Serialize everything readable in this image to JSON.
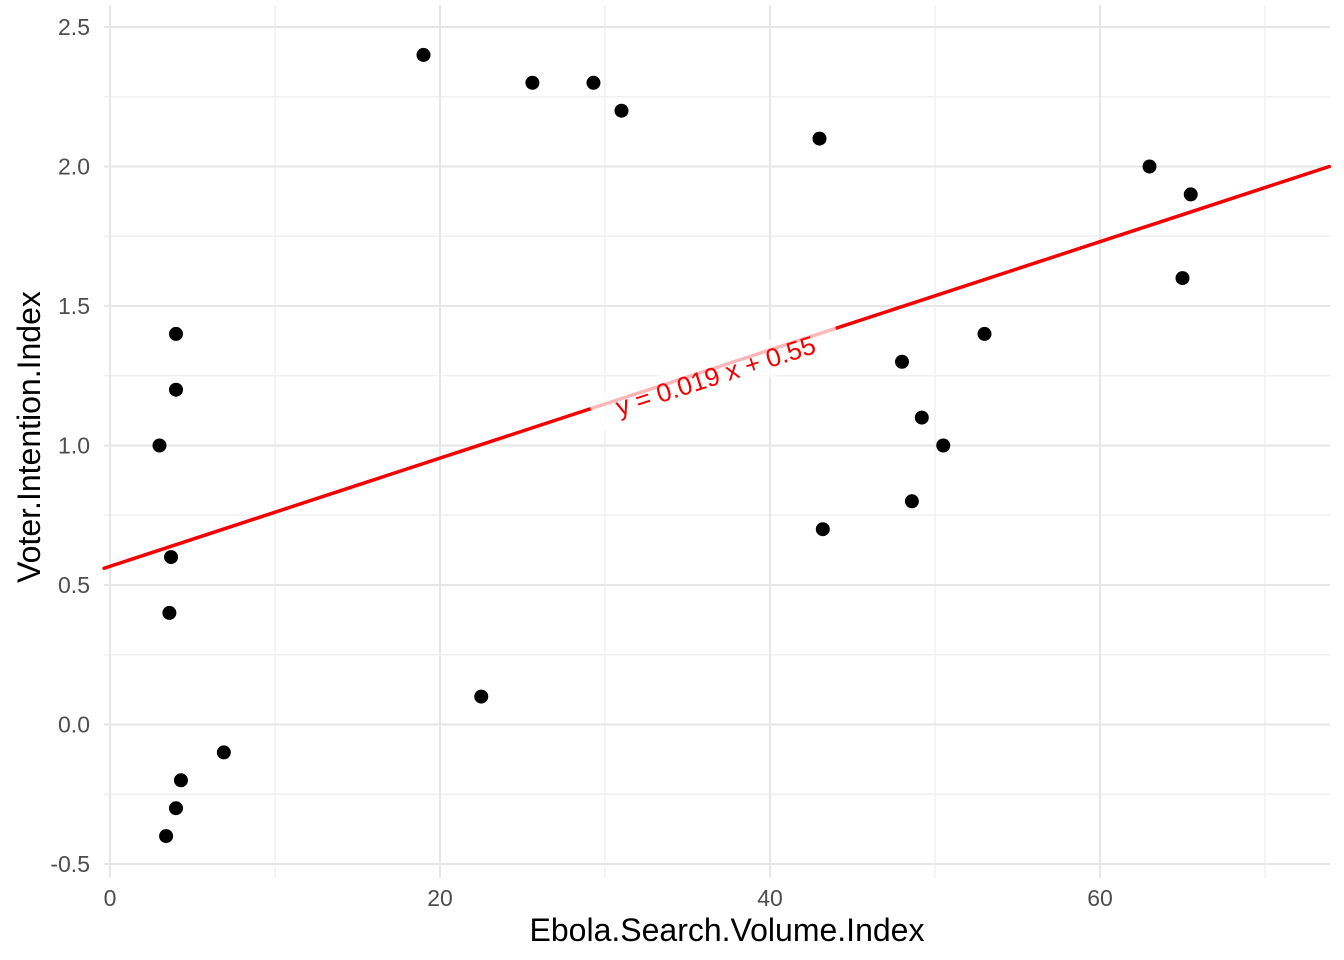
{
  "chart_data": {
    "type": "scatter",
    "title": "",
    "xlabel": "Ebola.Search.Volume.Index",
    "ylabel": "Voter.Intention.Index",
    "grid": true,
    "legend": false,
    "xlim": [
      -0.4,
      74.5
    ],
    "ylim": [
      -0.55,
      2.58
    ],
    "x_ticks": [
      {
        "value": 0,
        "label": "0"
      },
      {
        "value": 20,
        "label": "20"
      },
      {
        "value": 40,
        "label": "40"
      },
      {
        "value": 60,
        "label": "60"
      }
    ],
    "x_minor_ticks": [
      10,
      30,
      50,
      70
    ],
    "y_ticks": [
      {
        "value": 2.5,
        "label": "2.5"
      },
      {
        "value": 2.0,
        "label": "2.0"
      },
      {
        "value": 1.5,
        "label": "1.5"
      },
      {
        "value": 1.0,
        "label": "1.0"
      },
      {
        "value": 0.5,
        "label": "0.5"
      },
      {
        "value": 0.0,
        "label": "0.0"
      },
      {
        "value": -0.5,
        "label": "-0.5"
      }
    ],
    "y_minor_ticks": [
      2.25,
      1.75,
      1.25,
      0.75,
      0.25,
      -0.25
    ],
    "points": [
      [
        19,
        2.4
      ],
      [
        25.6,
        2.3
      ],
      [
        29.3,
        2.3
      ],
      [
        31,
        2.2
      ],
      [
        43,
        2.1
      ],
      [
        63,
        2.0
      ],
      [
        65.5,
        1.9
      ],
      [
        65,
        1.6
      ],
      [
        53,
        1.4
      ],
      [
        48,
        1.3
      ],
      [
        49.2,
        1.1
      ],
      [
        50.5,
        1.0
      ],
      [
        48.6,
        0.8
      ],
      [
        43.2,
        0.7
      ],
      [
        4,
        1.4
      ],
      [
        4,
        1.2
      ],
      [
        3,
        1.0
      ],
      [
        3.7,
        0.6
      ],
      [
        3.6,
        0.4
      ],
      [
        22.5,
        0.1
      ],
      [
        6.9,
        -0.1
      ],
      [
        4.3,
        -0.2
      ],
      [
        4,
        -0.3
      ],
      [
        3.4,
        -0.4
      ]
    ],
    "regression": {
      "label": "y = 0.019 x + 0.55",
      "slope": 0.019,
      "intercept": 0.55,
      "line_points": [
        [
          -0.36,
          0.56
        ],
        [
          73.9,
          2.0
        ]
      ],
      "label_x": 36.7,
      "label_y": 1.25,
      "label_angle_deg": -17.8
    },
    "colors": {
      "point": "#000000",
      "line": "#F40000",
      "annotation": "#F40000",
      "grid_major": "#E6E6E6",
      "grid_minor": "#F0F0F0",
      "tick_label": "#4D4D4D",
      "axis_title": "#000000",
      "background": "#FFFFFF"
    }
  }
}
